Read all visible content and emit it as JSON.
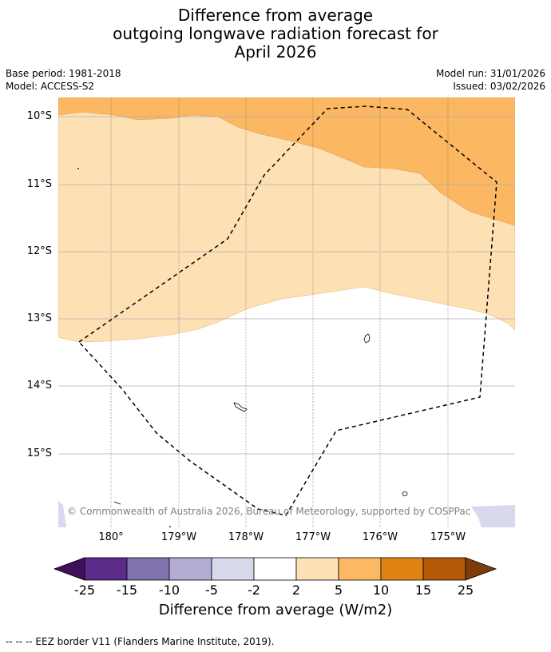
{
  "title": {
    "line1": "Difference from average",
    "line2": "outgoing longwave radiation forecast for",
    "line3": "April 2026"
  },
  "meta": {
    "base_period": "Base period: 1981-2018",
    "model": "Model: ACCESS-S2",
    "model_run": "Model run: 31/01/2026",
    "issued": "Issued: 03/02/2026"
  },
  "map": {
    "lat_labels": [
      "10°S",
      "11°S",
      "12°S",
      "13°S",
      "14°S",
      "15°S"
    ],
    "lon_labels": [
      "180°",
      "179°W",
      "178°W",
      "177°W",
      "176°W",
      "175°W"
    ],
    "copyright": "© Commonwealth of Australia 2026, Bureau of Meteorology, supported by COSPPac",
    "colors": {
      "band_5_10": "#fbb762",
      "band_2_5": "#fde0b3",
      "band_neutral": "#ffffff",
      "band_neg_5_2": "#d8d9ec",
      "eez_line": "#000000"
    }
  },
  "colorbar": {
    "ticks": [
      "-25",
      "-15",
      "-10",
      "-5",
      "-2",
      "2",
      "5",
      "10",
      "15",
      "25"
    ],
    "colors": [
      "#3f0f5e",
      "#5b2b8a",
      "#8073ac",
      "#b2abd2",
      "#d8daeb",
      "#ffffff",
      "#fee0b6",
      "#fdb863",
      "#e08214",
      "#b35806",
      "#7f3b08"
    ],
    "label": "Difference from average (W/m2)"
  },
  "legend": {
    "eez": "--  --  -- EEZ border V11 (Flanders Marine Institute, 2019)."
  }
}
